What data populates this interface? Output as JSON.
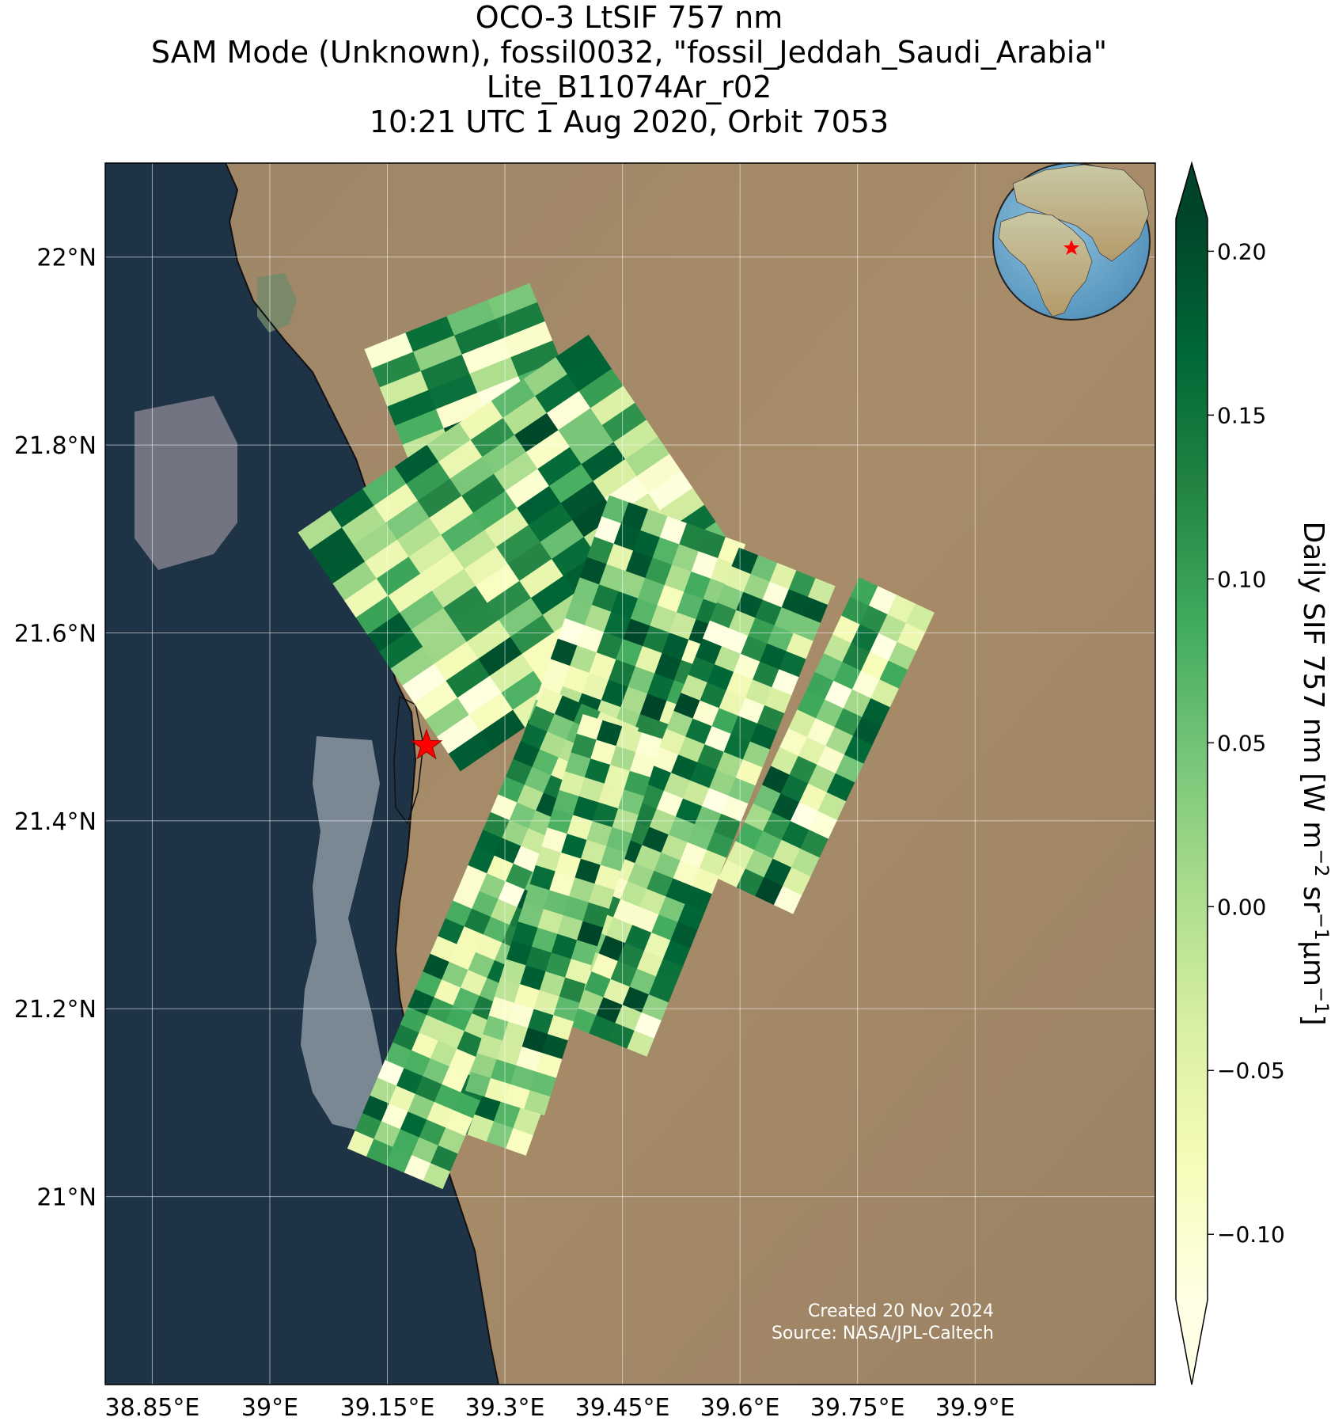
{
  "title": {
    "line1": "OCO-3 LtSIF 757 nm",
    "line2": "SAM Mode (Unknown), fossil0032, \"fossil_Jeddah_Saudi_Arabia\"",
    "line3": "Lite_B11074Ar_r02",
    "line4": "10:21 UTC 1 Aug 2020, Orbit 7053"
  },
  "map": {
    "lon_range": [
      38.79,
      40.13
    ],
    "lat_range": [
      20.8,
      22.1
    ],
    "lat_ticks": [
      {
        "value": 22.0,
        "label": "22°N"
      },
      {
        "value": 21.8,
        "label": "21.8°N"
      },
      {
        "value": 21.6,
        "label": "21.6°N"
      },
      {
        "value": 21.4,
        "label": "21.4°N"
      },
      {
        "value": 21.2,
        "label": "21.2°N"
      },
      {
        "value": 21.0,
        "label": "21°N"
      }
    ],
    "lon_ticks": [
      {
        "value": 38.85,
        "label": "38.85°E"
      },
      {
        "value": 39.0,
        "label": "39°E"
      },
      {
        "value": 39.15,
        "label": "39.15°E"
      },
      {
        "value": 39.3,
        "label": "39.3°E"
      },
      {
        "value": 39.45,
        "label": "39.45°E"
      },
      {
        "value": 39.6,
        "label": "39.6°E"
      },
      {
        "value": 39.75,
        "label": "39.75°E"
      },
      {
        "value": 39.9,
        "label": "39.9°E"
      }
    ],
    "gridlines": true,
    "target": {
      "lon": 39.2,
      "lat": 21.48,
      "marker": "red-star"
    },
    "inset": "globe-locator-top-right",
    "colors": {
      "sea": "#1f3347",
      "land": "#a48a68",
      "star": "#ff0000"
    }
  },
  "chart_data": {
    "type": "heatmap",
    "variable": "Daily SIF 757 nm",
    "colormap": "YlGn",
    "vmin": -0.12,
    "vmax": 0.21,
    "swaths": [
      {
        "lon_start": 39.17,
        "lat_start": 21.8,
        "lon_end": 39.38,
        "lat_end": 21.87,
        "rows": 4,
        "cols": 10
      },
      {
        "lon_start": 39.14,
        "lat_start": 21.58,
        "lon_end": 39.51,
        "lat_end": 21.79,
        "rows": 9,
        "cols": 14
      },
      {
        "lon_start": 39.24,
        "lat_start": 21.07,
        "lon_end": 39.52,
        "lat_end": 21.72,
        "rows": 30,
        "cols": 7
      },
      {
        "lon_start": 39.42,
        "lat_start": 21.17,
        "lon_end": 39.66,
        "lat_end": 21.67,
        "rows": 26,
        "cols": 5
      },
      {
        "lon_start": 39.62,
        "lat_start": 21.32,
        "lon_end": 39.8,
        "lat_end": 21.64,
        "rows": 16,
        "cols": 4
      },
      {
        "lon_start": 39.16,
        "lat_start": 21.03,
        "lon_end": 39.41,
        "lat_end": 21.52,
        "rows": 26,
        "cols": 5
      },
      {
        "lon_start": 39.3,
        "lat_start": 21.1,
        "lon_end": 39.45,
        "lat_end": 21.5,
        "rows": 20,
        "cols": 4
      }
    ]
  },
  "colorbar": {
    "label_main": "Daily SIF 757 nm [W m",
    "label_exp1": "−2",
    "label_mid": " sr",
    "label_exp2": "−1",
    "label_um": "μm",
    "label_exp3": "−1",
    "label_end": "]",
    "ticks": [
      {
        "value": 0.2,
        "label": "0.20"
      },
      {
        "value": 0.15,
        "label": "0.15"
      },
      {
        "value": 0.1,
        "label": "0.10"
      },
      {
        "value": 0.05,
        "label": "0.05"
      },
      {
        "value": 0.0,
        "label": "0.00"
      },
      {
        "value": -0.05,
        "label": "−0.05"
      },
      {
        "value": -0.1,
        "label": "−0.10"
      }
    ],
    "extend": "both"
  },
  "credit": {
    "line1": "Created 20 Nov 2024",
    "line2": "Source: NASA/JPL-Caltech"
  }
}
